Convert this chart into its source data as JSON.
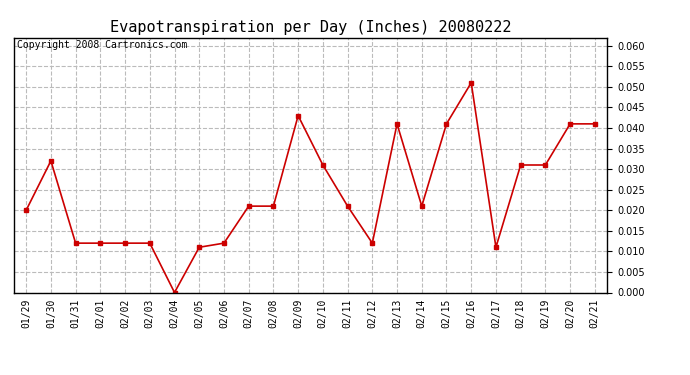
{
  "title": "Evapotranspiration per Day (Inches) 20080222",
  "copyright_text": "Copyright 2008 Cartronics.com",
  "x_labels": [
    "01/29",
    "01/30",
    "01/31",
    "02/01",
    "02/02",
    "02/03",
    "02/04",
    "02/05",
    "02/06",
    "02/07",
    "02/08",
    "02/09",
    "02/10",
    "02/11",
    "02/12",
    "02/13",
    "02/14",
    "02/15",
    "02/16",
    "02/17",
    "02/18",
    "02/19",
    "02/20",
    "02/21"
  ],
  "y_values": [
    0.02,
    0.032,
    0.012,
    0.012,
    0.012,
    0.012,
    0.0,
    0.011,
    0.012,
    0.021,
    0.021,
    0.043,
    0.031,
    0.021,
    0.012,
    0.041,
    0.021,
    0.041,
    0.051,
    0.011,
    0.031,
    0.031,
    0.041,
    0.041
  ],
  "line_color": "#cc0000",
  "marker": "s",
  "marker_size": 3,
  "ylim": [
    0.0,
    0.062
  ],
  "ytick_min": 0.0,
  "ytick_max": 0.06,
  "ytick_step": 0.005,
  "grid_color": "#bbbbbb",
  "grid_style": "--",
  "bg_color": "#ffffff",
  "title_fontsize": 11,
  "copyright_fontsize": 7,
  "tick_fontsize": 7,
  "ytick_fontsize": 7
}
